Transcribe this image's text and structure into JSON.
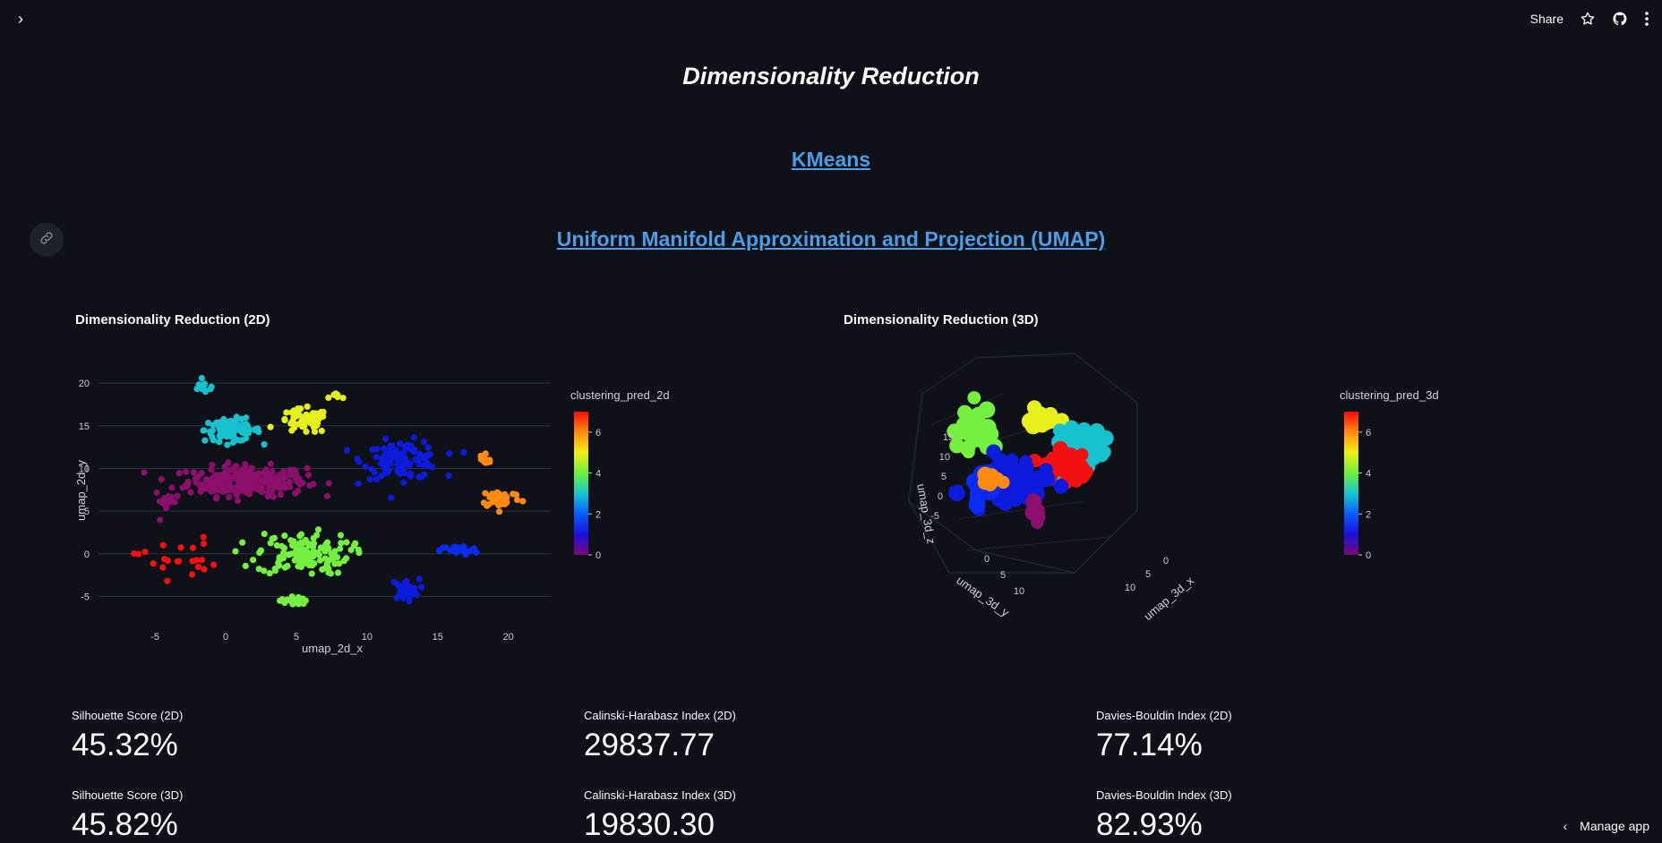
{
  "header": {
    "share_label": "Share"
  },
  "page_title": "Dimensionality Reduction",
  "links": {
    "kmeans": "KMeans",
    "umap": "Uniform Manifold Approximation and Projection (UMAP)"
  },
  "chart_2d": {
    "title": "Dimensionality Reduction (2D)",
    "legend_title": "clustering_pred_2d"
  },
  "chart_3d": {
    "title": "Dimensionality Reduction (3D)",
    "legend_title": "clustering_pred_3d"
  },
  "chart_data": [
    {
      "type": "scatter",
      "title": "Dimensionality Reduction (2D)",
      "xlabel": "umap_2d_x",
      "ylabel": "umap_2d_y",
      "xlim": [
        -9,
        23
      ],
      "ylim": [
        -8,
        24
      ],
      "xticks": [
        -5,
        0,
        5,
        10,
        15,
        20
      ],
      "yticks": [
        -5,
        0,
        5,
        10,
        15,
        20
      ],
      "grid": true,
      "colorbar": {
        "title": "clustering_pred_2d",
        "min": 0,
        "max": 7,
        "ticks": [
          0,
          2,
          4,
          6
        ]
      },
      "colors": {
        "0": "#8b0f6b",
        "1": "#0a2bf0",
        "2": "#0d1bdc",
        "3": "#17c2cf",
        "4": "#74f040",
        "5": "#e6f01a",
        "6": "#ff8a10",
        "7": "#f21010"
      },
      "clusters": [
        {
          "label": 0,
          "cx": 1.5,
          "cy": 8.5,
          "sx": 3.8,
          "sy": 1.6,
          "n": 260
        },
        {
          "label": 0,
          "cx": -4.2,
          "cy": 6.2,
          "sx": 0.8,
          "sy": 1.2,
          "n": 14
        },
        {
          "label": 3,
          "cx": 0.5,
          "cy": 14.5,
          "sx": 1.8,
          "sy": 1.2,
          "n": 90
        },
        {
          "label": 3,
          "cx": -1.5,
          "cy": 19.5,
          "sx": 0.8,
          "sy": 0.6,
          "n": 14
        },
        {
          "label": 5,
          "cx": 5.5,
          "cy": 15.5,
          "sx": 1.6,
          "sy": 1.3,
          "n": 60
        },
        {
          "label": 5,
          "cx": 8,
          "cy": 18.5,
          "sx": 0.6,
          "sy": 0.4,
          "n": 6
        },
        {
          "label": 2,
          "cx": 12.5,
          "cy": 11,
          "sx": 2.5,
          "sy": 2.0,
          "n": 110
        },
        {
          "label": 2,
          "cx": 12.7,
          "cy": -4.2,
          "sx": 0.9,
          "sy": 1.1,
          "n": 30
        },
        {
          "label": 1,
          "cx": 16.5,
          "cy": 0.4,
          "sx": 1.2,
          "sy": 0.5,
          "n": 30
        },
        {
          "label": 6,
          "cx": 18.3,
          "cy": 11,
          "sx": 0.4,
          "sy": 1.0,
          "n": 14
        },
        {
          "label": 6,
          "cx": 19.5,
          "cy": 6.5,
          "sx": 1.3,
          "sy": 1.0,
          "n": 40
        },
        {
          "label": 4,
          "cx": 5.5,
          "cy": 0,
          "sx": 3.0,
          "sy": 2.2,
          "n": 130
        },
        {
          "label": 4,
          "cx": 4.8,
          "cy": -5.5,
          "sx": 0.9,
          "sy": 0.5,
          "n": 20
        },
        {
          "label": 7,
          "cx": -3.5,
          "cy": -0.5,
          "sx": 2.5,
          "sy": 2.2,
          "n": 22
        }
      ]
    },
    {
      "type": "scatter",
      "title": "Dimensionality Reduction (3D)",
      "xlabel": "umap_3d_x",
      "ylabel": "umap_3d_y",
      "zlabel": "umap_3d_z",
      "colorbar": {
        "title": "clustering_pred_3d",
        "min": 0,
        "max": 7,
        "ticks": [
          0,
          2,
          4,
          6
        ]
      },
      "ticks_z": [
        -5,
        0,
        5,
        10,
        15
      ],
      "ticks_x": [
        0,
        5,
        10
      ],
      "ticks_y": [
        0,
        5,
        10
      ],
      "colors": {
        "0": "#8b0f6b",
        "1": "#0a2bf0",
        "2": "#0d1bdc",
        "3": "#17c2cf",
        "4": "#74f040",
        "5": "#e6f01a",
        "6": "#ff8a10",
        "7": "#f21010"
      },
      "blobs": [
        {
          "label": 4,
          "ox": -60,
          "oy": -50,
          "sx": 28,
          "sy": 22,
          "n": 40
        },
        {
          "label": 5,
          "ox": 15,
          "oy": -60,
          "sx": 18,
          "sy": 12,
          "n": 25
        },
        {
          "label": 3,
          "ox": 55,
          "oy": -30,
          "sx": 28,
          "sy": 20,
          "n": 45
        },
        {
          "label": 7,
          "ox": 40,
          "oy": -10,
          "sx": 22,
          "sy": 14,
          "n": 45
        },
        {
          "label": 2,
          "ox": -15,
          "oy": 10,
          "sx": 40,
          "sy": 24,
          "n": 90
        },
        {
          "label": 1,
          "ox": -55,
          "oy": 15,
          "sx": 14,
          "sy": 14,
          "n": 18
        },
        {
          "label": 6,
          "ox": -40,
          "oy": 5,
          "sx": 14,
          "sy": 12,
          "n": 10
        },
        {
          "label": 0,
          "ox": 5,
          "oy": 40,
          "sx": 6,
          "sy": 14,
          "n": 10
        }
      ]
    }
  ],
  "metrics": [
    {
      "label": "Silhouette Score (2D)",
      "value": "45.32%"
    },
    {
      "label": "Calinski-Harabasz Index (2D)",
      "value": "29837.77"
    },
    {
      "label": "Davies-Bouldin Index (2D)",
      "value": "77.14%"
    },
    {
      "label": "Silhouette Score (3D)",
      "value": "45.82%"
    },
    {
      "label": "Calinski-Harabasz Index (3D)",
      "value": "19830.30"
    },
    {
      "label": "Davies-Bouldin Index (3D)",
      "value": "82.93%"
    }
  ],
  "footer": {
    "manage_label": "Manage app"
  }
}
